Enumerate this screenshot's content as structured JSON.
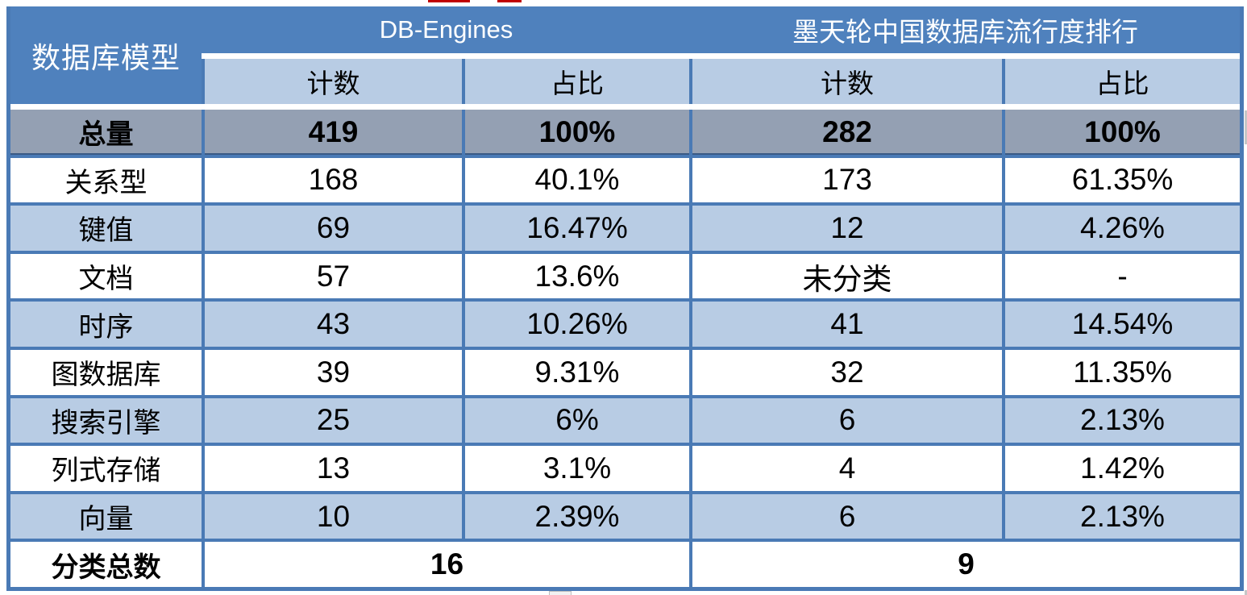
{
  "chart_data": {
    "type": "table",
    "corner_header": "数据库模型",
    "groups": [
      {
        "label": "DB-Engines",
        "sub_headers": [
          "计数",
          "占比"
        ]
      },
      {
        "label": "墨天轮中国数据库流行度排行",
        "sub_headers": [
          "计数",
          "占比"
        ]
      }
    ],
    "rows": [
      {
        "label": "总量",
        "is_total": true,
        "values": [
          "419",
          "100%",
          "282",
          "100%"
        ]
      },
      {
        "label": "关系型",
        "is_total": false,
        "values": [
          "168",
          "40.1%",
          "173",
          "61.35%"
        ]
      },
      {
        "label": "键值",
        "is_total": false,
        "values": [
          "69",
          "16.47%",
          "12",
          "4.26%"
        ]
      },
      {
        "label": "文档",
        "is_total": false,
        "values": [
          "57",
          "13.6%",
          "未分类",
          "-"
        ]
      },
      {
        "label": "时序",
        "is_total": false,
        "values": [
          "43",
          "10.26%",
          "41",
          "14.54%"
        ]
      },
      {
        "label": "图数据库",
        "is_total": false,
        "values": [
          "39",
          "9.31%",
          "32",
          "11.35%"
        ]
      },
      {
        "label": "搜索引擎",
        "is_total": false,
        "values": [
          "25",
          "6%",
          "6",
          "2.13%"
        ]
      },
      {
        "label": "列式存储",
        "is_total": false,
        "values": [
          "13",
          "3.1%",
          "4",
          "1.42%"
        ]
      },
      {
        "label": "向量",
        "is_total": false,
        "values": [
          "10",
          "2.39%",
          "6",
          "2.13%"
        ]
      }
    ],
    "footer": {
      "label": "分类总数",
      "values": [
        "16",
        "9"
      ]
    },
    "layout_hints": {
      "row_striping": true,
      "striping_colors": [
        "#ffffff",
        "#b8cce4"
      ],
      "total_row_color": "#94a0b3",
      "header_color": "#4f81bd",
      "grid": true
    }
  },
  "colors": {
    "header_blue": "#4f81bd",
    "light_blue": "#b8cce4",
    "total_gray": "#94a0b3",
    "border_blue": "#4a7ab5",
    "artifact_red": "#c00000"
  }
}
